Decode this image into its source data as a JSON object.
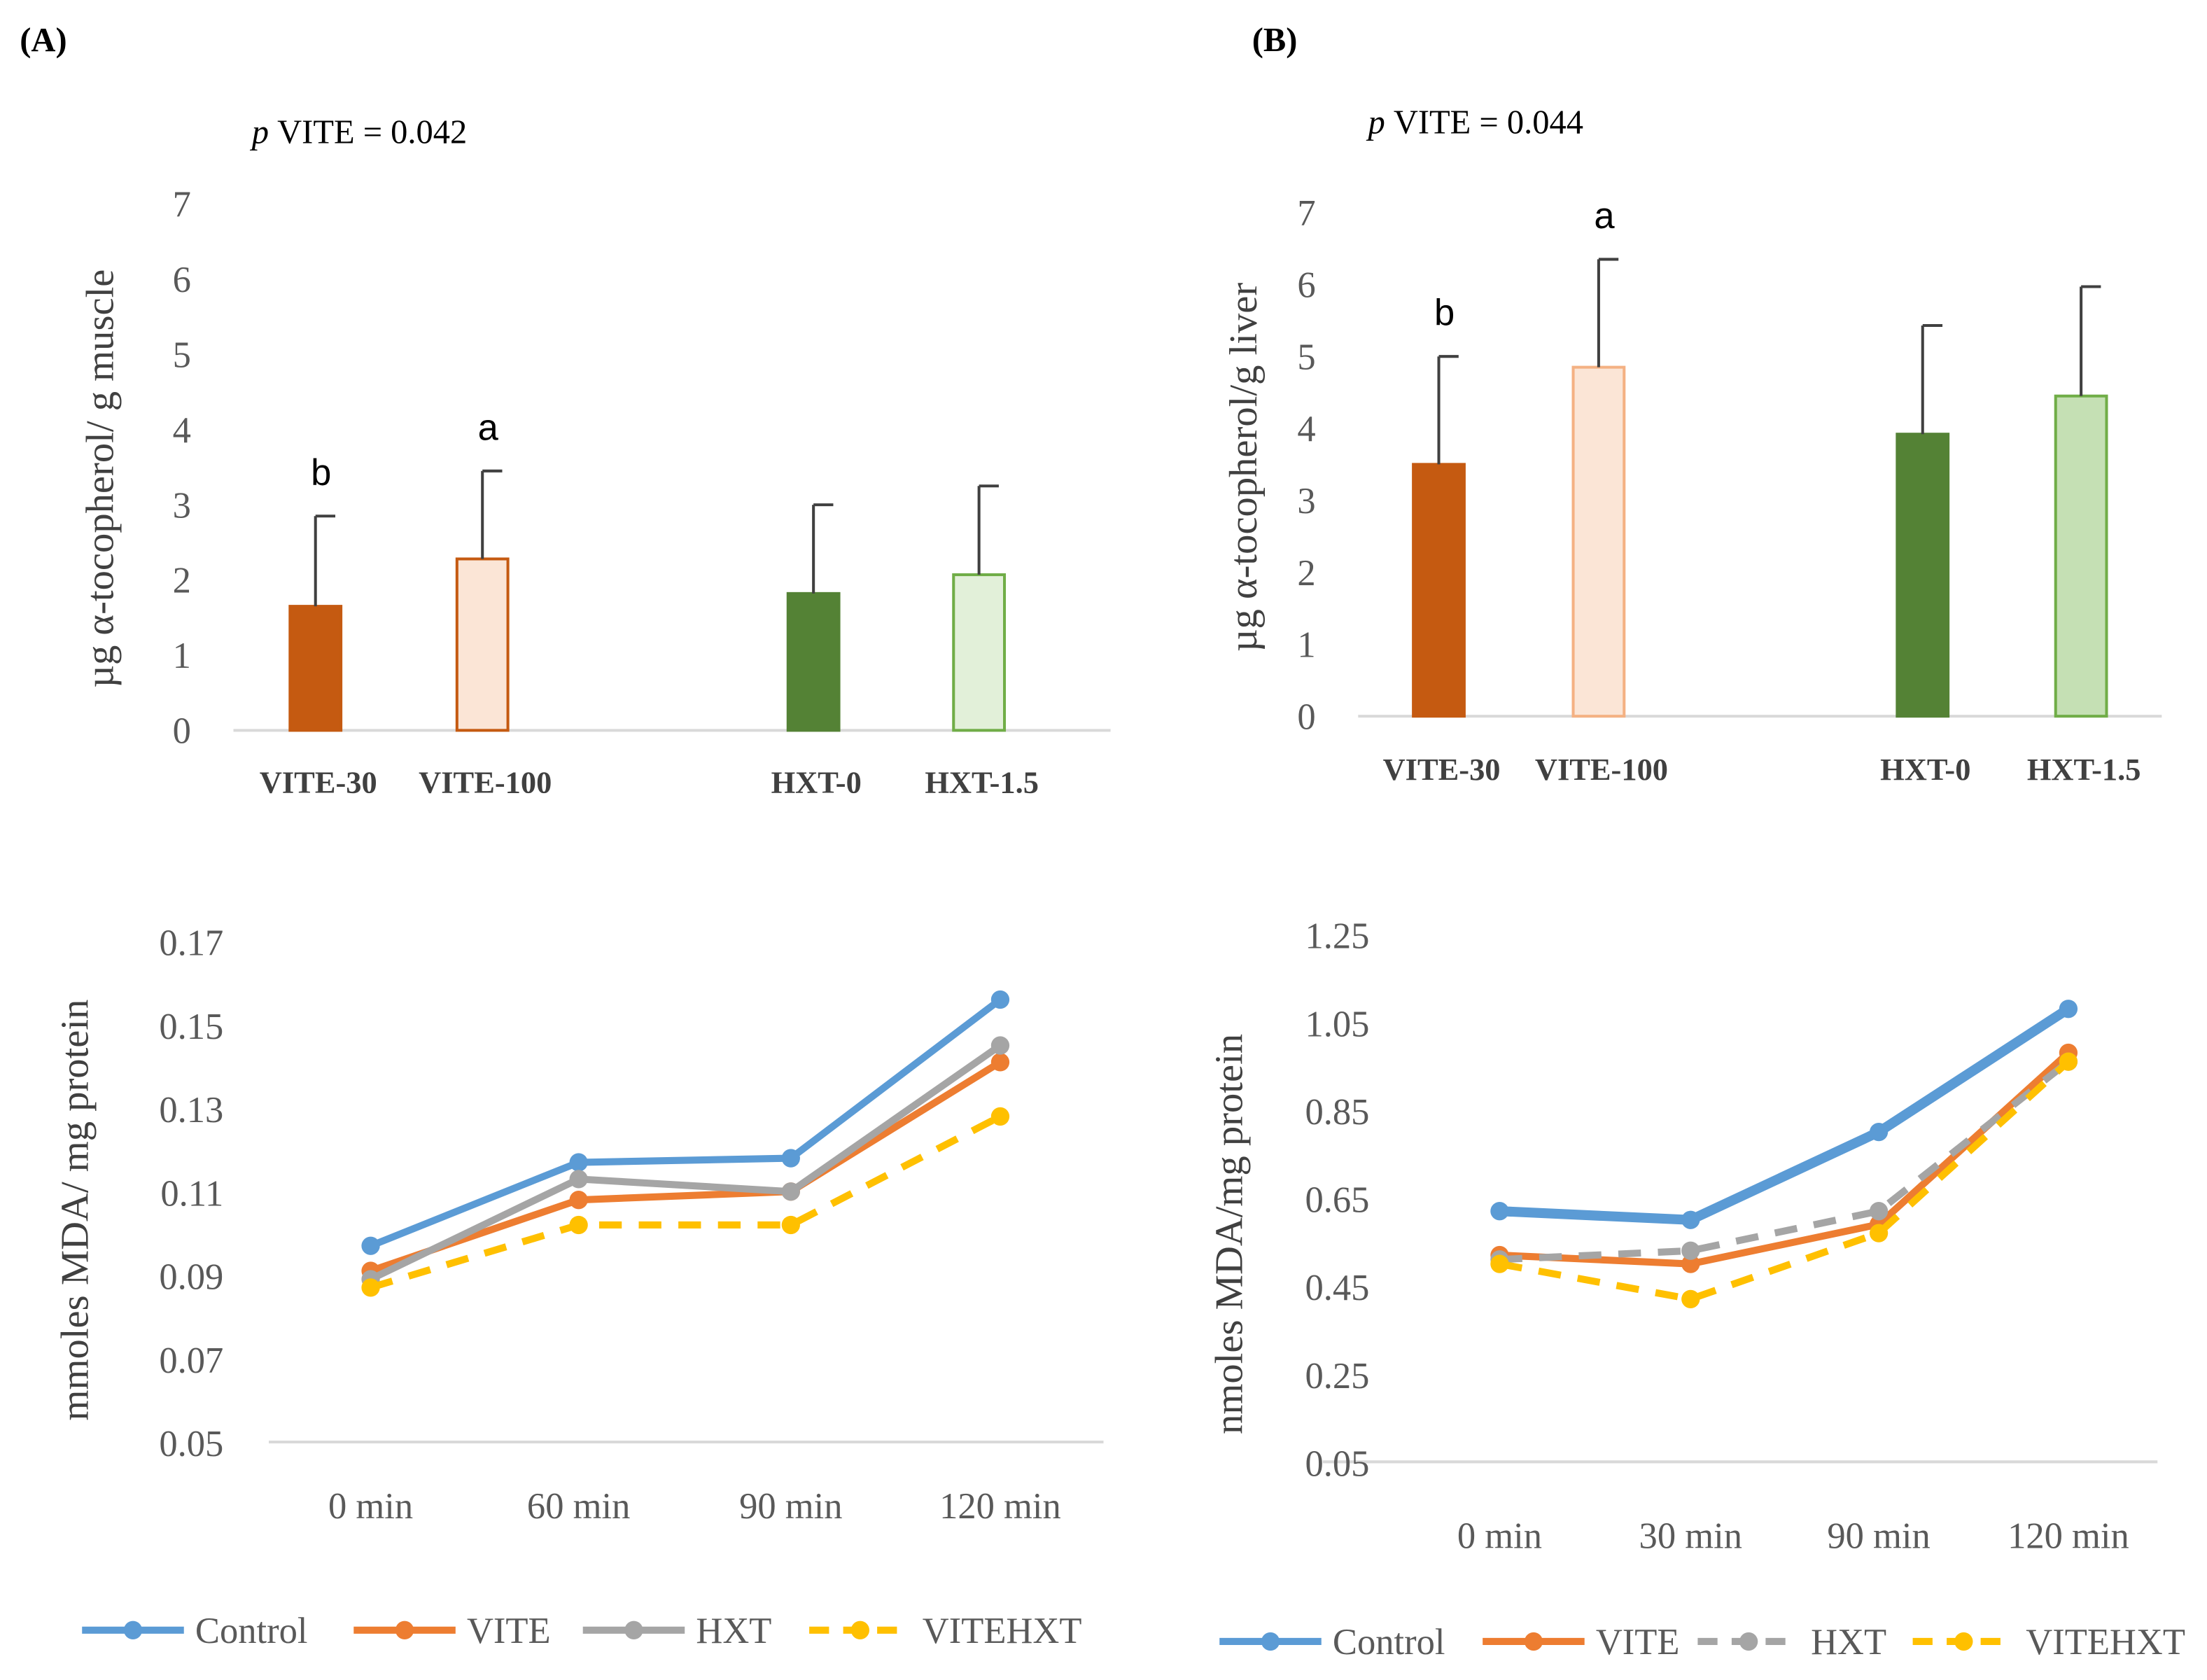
{
  "chart_data": [
    {
      "id": "A-bar",
      "type": "bar",
      "panel_label": "(A)",
      "annotation": "VITE = 0.042",
      "annotation_prefix": "p",
      "ylabel": "µg α-tocopherol/  g muscle",
      "ylim": [
        0,
        7
      ],
      "yticks": [
        "0",
        "1",
        "2",
        "3",
        "4",
        "5",
        "6",
        "7"
      ],
      "categories": [
        "VITE-30",
        "VITE-100",
        "HXT-0",
        "HXT-1.5"
      ],
      "values": [
        1.65,
        2.28,
        1.82,
        2.07
      ],
      "error_upper": [
        2.85,
        3.45,
        3.0,
        3.25
      ],
      "sig_letters": [
        "b",
        "a",
        "",
        ""
      ],
      "fill_colors": [
        "#c55a11",
        "#fbe5d6",
        "#548235",
        "#e2f0d9"
      ],
      "stroke_colors": [
        "#c55a11",
        "#c55a11",
        "#548235",
        "#70ad47"
      ]
    },
    {
      "id": "B-bar",
      "type": "bar",
      "panel_label": "(B)",
      "annotation": "VITE = 0.044",
      "annotation_prefix": "p",
      "ylabel": "µg α-tocopherol/g  liver",
      "ylim": [
        0,
        7
      ],
      "yticks": [
        "0",
        "1",
        "2",
        "3",
        "4",
        "5",
        "6",
        "7"
      ],
      "categories": [
        "VITE-30",
        "VITE-100",
        "HXT-0",
        "HXT-1.5"
      ],
      "values": [
        3.5,
        4.85,
        3.92,
        4.45
      ],
      "error_upper": [
        5.0,
        6.35,
        5.43,
        5.97
      ],
      "sig_letters": [
        "b",
        "a",
        "",
        ""
      ],
      "fill_colors": [
        "#c55a11",
        "#fbe5d6",
        "#548235",
        "#c5e0b4"
      ],
      "stroke_colors": [
        "#c55a11",
        "#f4b183",
        "#548235",
        "#70ad47"
      ]
    },
    {
      "id": "A-line",
      "type": "line",
      "ylabel": "mmoles MDA/ mg protein",
      "ylim": [
        0.05,
        0.17
      ],
      "yticks": [
        "0.05",
        "0.07",
        "0.09",
        "0.11",
        "0.13",
        "0.15",
        "0.17"
      ],
      "categories": [
        "0 min",
        "60 min",
        "90 min",
        "120 min"
      ],
      "series": [
        {
          "name": "Control",
          "color": "#5b9bd5",
          "dashed": false,
          "values": [
            0.097,
            0.117,
            0.118,
            0.156
          ]
        },
        {
          "name": "VITE",
          "color": "#ed7d31",
          "dashed": false,
          "values": [
            0.091,
            0.108,
            0.11,
            0.141
          ]
        },
        {
          "name": "HXT",
          "color": "#a5a5a5",
          "dashed": false,
          "values": [
            0.089,
            0.113,
            0.11,
            0.145
          ]
        },
        {
          "name": "VITEHXT",
          "color": "#ffc000",
          "dashed": true,
          "values": [
            0.087,
            0.102,
            0.102,
            0.128
          ]
        }
      ],
      "legend": "bottom"
    },
    {
      "id": "B-line",
      "type": "line",
      "ylabel": "nmoles MDA/mg  protein",
      "ylim": [
        0.05,
        1.25
      ],
      "yticks": [
        "0.05",
        "0.25",
        "0.45",
        "0.65",
        "0.85",
        "1.05",
        "1.25"
      ],
      "categories": [
        "0 min",
        "30 min",
        "90 min",
        "120 min"
      ],
      "series": [
        {
          "name": "Control",
          "color": "#5b9bd5",
          "dashed": false,
          "values": [
            0.62,
            0.6,
            0.8,
            1.08
          ]
        },
        {
          "name": "VITE",
          "color": "#ed7d31",
          "dashed": false,
          "values": [
            0.52,
            0.5,
            0.59,
            0.98
          ]
        },
        {
          "name": "HXT",
          "color": "#a5a5a5",
          "dashed": true,
          "values": [
            0.51,
            0.53,
            0.62,
            0.96
          ]
        },
        {
          "name": "VITEHXT",
          "color": "#ffc000",
          "dashed": true,
          "values": [
            0.5,
            0.42,
            0.57,
            0.96
          ]
        }
      ],
      "legend": "bottom"
    }
  ]
}
